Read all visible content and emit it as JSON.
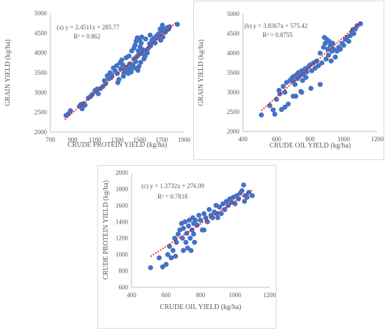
{
  "chart_data": [
    {
      "type": "scatter",
      "panel_label": "(a)",
      "equation": "y = 2.4511x + 285.77",
      "r_squared": "R² = 0.862",
      "xlabel": "CRUDE PROTEIN YIELD (kg/ha)",
      "ylabel": "GRAIN YIELD (kg/ha)",
      "xlim": [
        700,
        1900
      ],
      "ylim": [
        2000,
        5000
      ],
      "xticks": [
        "700",
        "900",
        "1100",
        "1300",
        "1500",
        "1700",
        "1900"
      ],
      "yticks": [
        "2000",
        "2500",
        "3000",
        "3500",
        "4000",
        "4500",
        "5000"
      ],
      "trendline": {
        "slope": 2.4511,
        "intercept": 285.77,
        "x_range": [
          830,
          1830
        ]
      },
      "grid": false,
      "points": [
        [
          840,
          2420
        ],
        [
          860,
          2460
        ],
        [
          880,
          2540
        ],
        [
          960,
          2650
        ],
        [
          975,
          2700
        ],
        [
          985,
          2590
        ],
        [
          1000,
          2720
        ],
        [
          1010,
          2680
        ],
        [
          1040,
          2860
        ],
        [
          1060,
          2900
        ],
        [
          1075,
          2950
        ],
        [
          1100,
          3050
        ],
        [
          1120,
          3090
        ],
        [
          1130,
          2970
        ],
        [
          1150,
          3100
        ],
        [
          1170,
          3150
        ],
        [
          1185,
          3300
        ],
        [
          1195,
          3220
        ],
        [
          1210,
          3420
        ],
        [
          1225,
          3350
        ],
        [
          1235,
          3500
        ],
        [
          1245,
          3380
        ],
        [
          1250,
          3450
        ],
        [
          1265,
          3620
        ],
        [
          1280,
          3550
        ],
        [
          1295,
          3680
        ],
        [
          1300,
          3480
        ],
        [
          1305,
          3250
        ],
        [
          1315,
          3330
        ],
        [
          1325,
          3750
        ],
        [
          1330,
          3600
        ],
        [
          1340,
          3820
        ],
        [
          1350,
          3700
        ],
        [
          1355,
          3410
        ],
        [
          1360,
          3500
        ],
        [
          1370,
          3580
        ],
        [
          1380,
          3880
        ],
        [
          1385,
          3640
        ],
        [
          1395,
          3550
        ],
        [
          1400,
          3480
        ],
        [
          1405,
          3920
        ],
        [
          1410,
          3720
        ],
        [
          1420,
          3600
        ],
        [
          1425,
          3520
        ],
        [
          1430,
          4050
        ],
        [
          1440,
          3700
        ],
        [
          1450,
          4120
        ],
        [
          1455,
          3620
        ],
        [
          1460,
          4200
        ],
        [
          1465,
          3780
        ],
        [
          1470,
          4300
        ],
        [
          1475,
          3900
        ],
        [
          1480,
          4380
        ],
        [
          1485,
          3560
        ],
        [
          1490,
          4050
        ],
        [
          1495,
          3660
        ],
        [
          1500,
          4340
        ],
        [
          1505,
          4150
        ],
        [
          1510,
          3760
        ],
        [
          1515,
          4250
        ],
        [
          1520,
          4400
        ],
        [
          1525,
          3980
        ],
        [
          1530,
          4080
        ],
        [
          1540,
          3850
        ],
        [
          1550,
          3920
        ],
        [
          1560,
          4060
        ],
        [
          1570,
          4000
        ],
        [
          1580,
          4120
        ],
        [
          1590,
          4230
        ],
        [
          1600,
          4180
        ],
        [
          1610,
          4320
        ],
        [
          1620,
          4280
        ],
        [
          1630,
          4370
        ],
        [
          1640,
          4250
        ],
        [
          1650,
          4420
        ],
        [
          1660,
          4380
        ],
        [
          1670,
          4480
        ],
        [
          1680,
          4460
        ],
        [
          1690,
          4320
        ],
        [
          1700,
          4550
        ],
        [
          1705,
          4700
        ],
        [
          1710,
          4400
        ],
        [
          1720,
          4600
        ],
        [
          1730,
          4520
        ],
        [
          1740,
          4560
        ],
        [
          1750,
          4640
        ],
        [
          1760,
          4600
        ],
        [
          1770,
          4660
        ],
        [
          1840,
          4720
        ],
        [
          1685,
          4600
        ],
        [
          1555,
          4350
        ],
        [
          1595,
          4450
        ],
        [
          1490,
          3950
        ],
        [
          1450,
          3850
        ]
      ]
    },
    {
      "type": "scatter",
      "panel_label": "(b)",
      "equation": "y = 3.8367x + 575.42",
      "r_squared": "R² = 0.8755",
      "xlabel": "CRUDE OIL YIELD (kg/ha)",
      "ylabel": "GRAIN YIELD (kg/ha)",
      "xlim": [
        400,
        1200
      ],
      "ylim": [
        2000,
        5000
      ],
      "xticks": [
        "400",
        "600",
        "800",
        "1000",
        "1200"
      ],
      "yticks": [
        "2000",
        "2500",
        "3000",
        "3500",
        "4000",
        "4500",
        "5000"
      ],
      "trendline": {
        "slope": 3.8367,
        "intercept": 575.42,
        "x_range": [
          510,
          1100
        ]
      },
      "grid": false,
      "points": [
        [
          510,
          2420
        ],
        [
          560,
          2660
        ],
        [
          580,
          2550
        ],
        [
          590,
          2440
        ],
        [
          600,
          2820
        ],
        [
          615,
          3050
        ],
        [
          620,
          2960
        ],
        [
          630,
          2560
        ],
        [
          640,
          3150
        ],
        [
          650,
          2620
        ],
        [
          660,
          3250
        ],
        [
          670,
          2700
        ],
        [
          680,
          3300
        ],
        [
          690,
          3350
        ],
        [
          700,
          3280
        ],
        [
          700,
          3400
        ],
        [
          710,
          3200
        ],
        [
          715,
          2900
        ],
        [
          720,
          3450
        ],
        [
          725,
          3350
        ],
        [
          730,
          3500
        ],
        [
          740,
          3420
        ],
        [
          745,
          3020
        ],
        [
          750,
          3550
        ],
        [
          755,
          3300
        ],
        [
          760,
          3460
        ],
        [
          770,
          3600
        ],
        [
          775,
          3380
        ],
        [
          780,
          3520
        ],
        [
          790,
          3650
        ],
        [
          800,
          3700
        ],
        [
          805,
          3100
        ],
        [
          810,
          3550
        ],
        [
          820,
          3750
        ],
        [
          830,
          3620
        ],
        [
          840,
          3800
        ],
        [
          850,
          3680
        ],
        [
          860,
          4000
        ],
        [
          870,
          3750
        ],
        [
          880,
          4150
        ],
        [
          885,
          4400
        ],
        [
          890,
          4250
        ],
        [
          895,
          3850
        ],
        [
          900,
          4350
        ],
        [
          905,
          4100
        ],
        [
          910,
          3950
        ],
        [
          915,
          4300
        ],
        [
          920,
          4200
        ],
        [
          925,
          3800
        ],
        [
          930,
          4050
        ],
        [
          935,
          4250
        ],
        [
          940,
          4100
        ],
        [
          950,
          3900
        ],
        [
          960,
          4050
        ],
        [
          970,
          4150
        ],
        [
          980,
          4100
        ],
        [
          990,
          4250
        ],
        [
          1000,
          4200
        ],
        [
          1010,
          4350
        ],
        [
          1020,
          4400
        ],
        [
          1030,
          4300
        ],
        [
          1040,
          4450
        ],
        [
          1050,
          4550
        ],
        [
          1055,
          4600
        ],
        [
          1060,
          4500
        ],
        [
          1070,
          4620
        ],
        [
          1080,
          4700
        ],
        [
          1100,
          4750
        ],
        [
          750,
          3000
        ],
        [
          700,
          2900
        ],
        [
          650,
          3000
        ],
        [
          860,
          3200
        ]
      ]
    },
    {
      "type": "scatter",
      "panel_label": "(c)",
      "equation": "y = 1.3732x + 276.99",
      "r_squared": "R² = 0.7818",
      "xlabel": "CRUDE OIL YIELD (kg/ha)",
      "ylabel": "CRUDE PROTEIN YIELD (kg/ha)",
      "xlim": [
        400,
        1200
      ],
      "ylim": [
        600,
        2000
      ],
      "xticks": [
        "400",
        "600",
        "800",
        "1000",
        "1200"
      ],
      "yticks": [
        "600",
        "800",
        "1000",
        "1200",
        "1400",
        "1600",
        "1800",
        "2000"
      ],
      "trendline": {
        "slope": 1.3732,
        "intercept": 276.99,
        "x_range": [
          510,
          1100
        ]
      },
      "grid": false,
      "points": [
        [
          510,
          840
        ],
        [
          560,
          960
        ],
        [
          580,
          850
        ],
        [
          600,
          880
        ],
        [
          610,
          1000
        ],
        [
          620,
          1100
        ],
        [
          630,
          960
        ],
        [
          640,
          1050
        ],
        [
          650,
          1200
        ],
        [
          655,
          980
        ],
        [
          660,
          1150
        ],
        [
          670,
          1250
        ],
        [
          680,
          1300
        ],
        [
          690,
          1380
        ],
        [
          695,
          1200
        ],
        [
          700,
          1320
        ],
        [
          710,
          1400
        ],
        [
          715,
          1150
        ],
        [
          720,
          1260
        ],
        [
          725,
          1080
        ],
        [
          730,
          1350
        ],
        [
          735,
          1420
        ],
        [
          740,
          1200
        ],
        [
          745,
          1050
        ],
        [
          750,
          1300
        ],
        [
          755,
          1450
        ],
        [
          760,
          1380
        ],
        [
          765,
          1150
        ],
        [
          770,
          1420
        ],
        [
          780,
          1360
        ],
        [
          790,
          1480
        ],
        [
          800,
          1420
        ],
        [
          810,
          1300
        ],
        [
          820,
          1500
        ],
        [
          830,
          1450
        ],
        [
          840,
          1400
        ],
        [
          850,
          1550
        ],
        [
          860,
          1480
        ],
        [
          870,
          1450
        ],
        [
          880,
          1520
        ],
        [
          890,
          1600
        ],
        [
          895,
          1500
        ],
        [
          900,
          1450
        ],
        [
          910,
          1580
        ],
        [
          920,
          1500
        ],
        [
          930,
          1620
        ],
        [
          940,
          1550
        ],
        [
          950,
          1650
        ],
        [
          960,
          1600
        ],
        [
          970,
          1680
        ],
        [
          980,
          1640
        ],
        [
          990,
          1700
        ],
        [
          1000,
          1620
        ],
        [
          1010,
          1720
        ],
        [
          1020,
          1680
        ],
        [
          1030,
          1750
        ],
        [
          1040,
          1780
        ],
        [
          1050,
          1850
        ],
        [
          1055,
          1650
        ],
        [
          1060,
          1720
        ],
        [
          1070,
          1700
        ],
        [
          1080,
          1760
        ],
        [
          1100,
          1720
        ],
        [
          700,
          1050
        ],
        [
          760,
          1250
        ],
        [
          820,
          1300
        ]
      ]
    }
  ],
  "style": {
    "marker_color": "#4472c4",
    "trendline_color": "#ff0000",
    "axis_color": "#bfbfbf",
    "text_color": "#595959"
  }
}
